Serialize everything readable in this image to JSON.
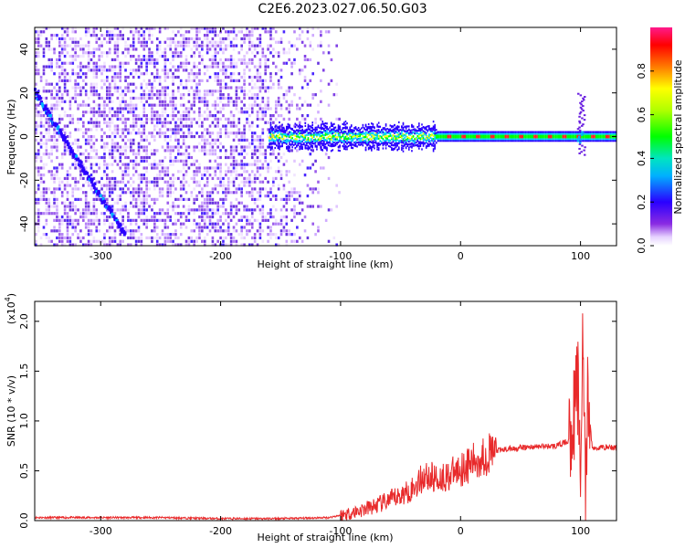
{
  "title": "C2E6.2023.027.06.50.G03",
  "colors": {
    "snr_line": "#e8292a",
    "axis": "#000000",
    "background": "#ffffff"
  },
  "chart_data": [
    {
      "type": "heatmap",
      "xlabel": "Height of straight line (km)",
      "ylabel": "Frequency (Hz)",
      "xlim": [
        -355,
        130
      ],
      "ylim": [
        -50,
        50
      ],
      "xticks": [
        {
          "value": -300,
          "label": "-300"
        },
        {
          "value": -200,
          "label": "-200"
        },
        {
          "value": -100,
          "label": "-100"
        },
        {
          "value": 0,
          "label": "0"
        },
        {
          "value": 100,
          "label": "100"
        }
      ],
      "yticks": [
        {
          "value": -40,
          "label": "-40"
        },
        {
          "value": -20,
          "label": "-20"
        },
        {
          "value": 0,
          "label": "0"
        },
        {
          "value": 20,
          "label": "20"
        },
        {
          "value": 40,
          "label": "40"
        }
      ],
      "features": {
        "noise_band_x": [
          -355,
          -100
        ],
        "ridge_x": [
          -160,
          130
        ],
        "ridge_freq": 0,
        "diagonal_streak": [
          [
            -355,
            20
          ],
          [
            -280,
            -45
          ]
        ],
        "spike_x": [
          100
        ],
        "spike_freq_range": [
          -8,
          20
        ]
      },
      "colorbar": {
        "label": "Normalized spectral amplitude",
        "ticks": [
          {
            "value": 0.0,
            "label": "0.0"
          },
          {
            "value": 0.2,
            "label": "0.2"
          },
          {
            "value": 0.4,
            "label": "0.4"
          },
          {
            "value": 0.6,
            "label": "0.6"
          },
          {
            "value": 0.8,
            "label": "0.8"
          }
        ],
        "range": [
          0,
          1
        ],
        "colormap": "rainbow (white-violet-blue-cyan-green-yellow-red-magenta)"
      }
    },
    {
      "type": "line",
      "xlabel": "Height of straight line (km)",
      "ylabel": "SNR (10 * v/v)",
      "yunit_label": "(x10",
      "yunit_exp": "4",
      "yunit_close": ")",
      "xlim": [
        -355,
        130
      ],
      "ylim": [
        0,
        2.2
      ],
      "xticks": [
        {
          "value": -300,
          "label": "-300"
        },
        {
          "value": -200,
          "label": "-200"
        },
        {
          "value": -100,
          "label": "-100"
        },
        {
          "value": 0,
          "label": "0"
        },
        {
          "value": 100,
          "label": "100"
        }
      ],
      "yticks": [
        {
          "value": 0.0,
          "label": "0.0"
        },
        {
          "value": 0.5,
          "label": "0.5"
        },
        {
          "value": 1.0,
          "label": "1.0"
        },
        {
          "value": 1.5,
          "label": "1.5"
        },
        {
          "value": 2.0,
          "label": "2.0"
        }
      ],
      "series": [
        {
          "x": [
            -355,
            -300,
            -250,
            -200,
            -150,
            -110,
            -90,
            -70,
            -50,
            -40,
            -30,
            -20,
            -10,
            0,
            10,
            20,
            30,
            40,
            60,
            80,
            90,
            95,
            98,
            100,
            102,
            104,
            106,
            110,
            120,
            130
          ],
          "y": [
            0.03,
            0.03,
            0.03,
            0.02,
            0.02,
            0.03,
            0.08,
            0.15,
            0.25,
            0.32,
            0.45,
            0.42,
            0.45,
            0.52,
            0.58,
            0.65,
            0.7,
            0.72,
            0.74,
            0.75,
            0.8,
            1.1,
            1.4,
            0.3,
            2.2,
            0.05,
            1.2,
            0.72,
            0.74,
            0.73
          ]
        }
      ]
    }
  ]
}
